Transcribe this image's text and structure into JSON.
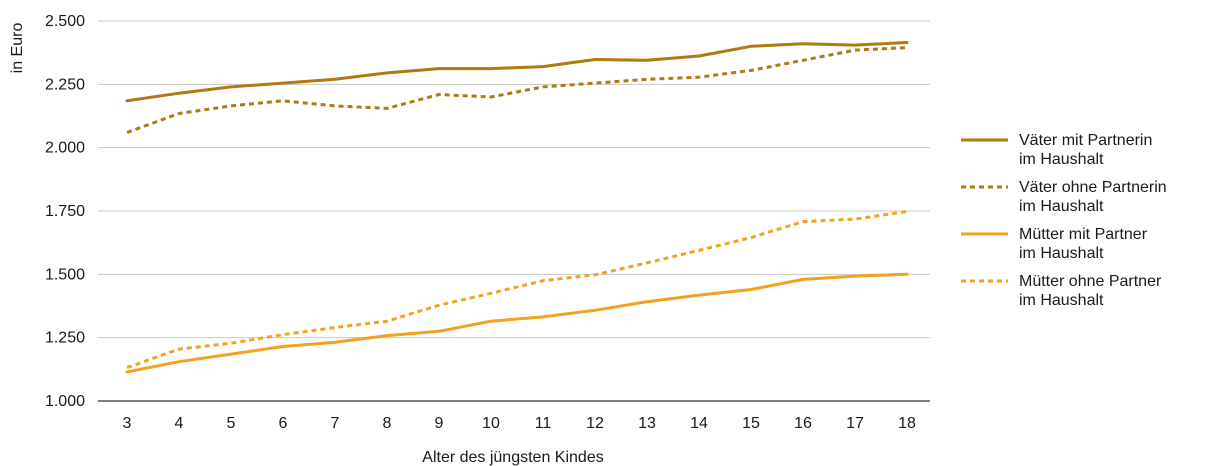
{
  "chart_data": {
    "type": "line",
    "xlabel": "Alter des jüngsten Kindes",
    "ylabel": "in Euro",
    "x": [
      3,
      4,
      5,
      6,
      7,
      8,
      9,
      10,
      11,
      12,
      13,
      14,
      15,
      16,
      17,
      18
    ],
    "x_tick_labels": [
      "3",
      "4",
      "5",
      "6",
      "7",
      "8",
      "9",
      "10",
      "11",
      "12",
      "13",
      "14",
      "15",
      "16",
      "17",
      "18"
    ],
    "ylim": [
      1000,
      2500
    ],
    "y_ticks": [
      1000,
      1250,
      1500,
      1750,
      2000,
      2250,
      2500
    ],
    "y_tick_labels": [
      "1.000",
      "1.250",
      "1.500",
      "1.750",
      "2.000",
      "2.250",
      "2.500"
    ],
    "grid": true,
    "legend_position": "right",
    "series": [
      {
        "name_lines": [
          "Väter mit Partnerin",
          "im Haushalt"
        ],
        "color": "#b07a10",
        "dash": "solid",
        "values": [
          2185,
          2215,
          2240,
          2255,
          2270,
          2295,
          2312,
          2312,
          2320,
          2348,
          2345,
          2362,
          2400,
          2410,
          2405,
          2415
        ]
      },
      {
        "name_lines": [
          "Väter ohne Partnerin",
          "im Haushalt"
        ],
        "color": "#b07a10",
        "dash": "dotted",
        "values": [
          2060,
          2135,
          2165,
          2185,
          2165,
          2155,
          2210,
          2200,
          2240,
          2255,
          2270,
          2278,
          2305,
          2345,
          2385,
          2395
        ]
      },
      {
        "name_lines": [
          "Mütter mit Partner",
          "im Haushalt"
        ],
        "color": "#f2a21e",
        "dash": "solid",
        "values": [
          1115,
          1155,
          1185,
          1215,
          1232,
          1258,
          1275,
          1315,
          1332,
          1358,
          1392,
          1418,
          1440,
          1480,
          1493,
          1500
        ]
      },
      {
        "name_lines": [
          "Mütter ohne Partner",
          "im Haushalt"
        ],
        "color": "#f2a21e",
        "dash": "dotted",
        "values": [
          1132,
          1205,
          1228,
          1262,
          1290,
          1315,
          1378,
          1425,
          1475,
          1498,
          1545,
          1595,
          1645,
          1708,
          1718,
          1748
        ]
      }
    ]
  }
}
